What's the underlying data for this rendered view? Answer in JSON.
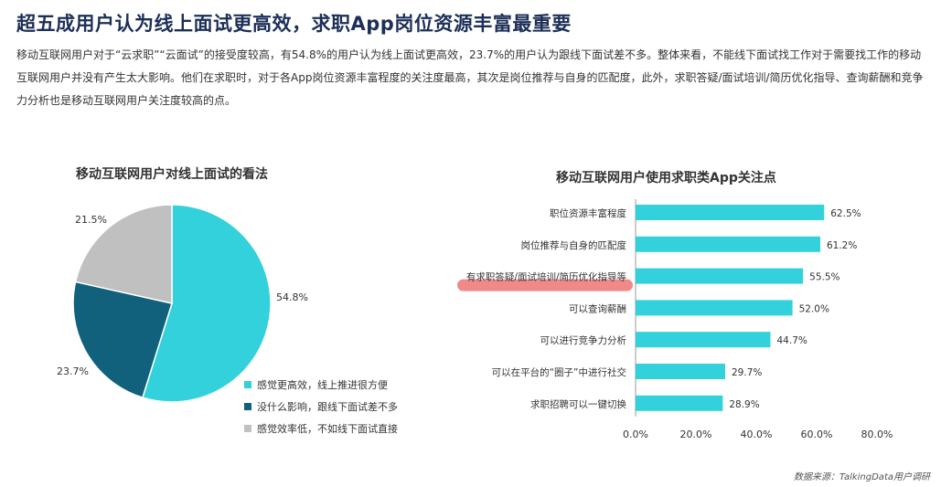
{
  "headline": "超五成用户认为线上面试更高效，求职App岗位资源丰富最重要",
  "summary": "移动互联网用户对于“云求职”“云面试”的接受度较高，有54.8%的用户认为线上面试更高效，23.7%的用户认为跟线下面试差不多。整体来看，不能线下面试找工作对于需要找工作的移动互联网用户并没有产生太大影响。他们在求职时，对于各App岗位资源丰富程度的关注度最高，其次是岗位推荐与自身的匹配度，此外，求职答疑/面试培训/简历优化指导、查询薪酬和竞争力分析也是移动互联网用户关注度较高的点。",
  "source": "数据来源：TalkingData用户调研",
  "colors": {
    "cyan": "#33d1dc",
    "teal": "#11607c",
    "gray": "#c0c0c0",
    "highlight": "#f08a8a",
    "headline": "#1c2f57"
  },
  "chart_data": [
    {
      "type": "pie",
      "title": "移动互联网用户对线上面试的看法",
      "slices": [
        {
          "label": "感觉更高效，线上推进很方便",
          "value": 54.8,
          "value_label": "54.8%",
          "color": "#33d1dc"
        },
        {
          "label": "没什么影响，跟线下面试差不多",
          "value": 23.7,
          "value_label": "23.7%",
          "color": "#11607c"
        },
        {
          "label": "感觉效率低，不如线下面试直接",
          "value": 21.5,
          "value_label": "21.5%",
          "color": "#c0c0c0"
        }
      ],
      "legend_position": "bottom-right"
    },
    {
      "type": "bar",
      "orientation": "horizontal",
      "title": "移动互联网用户使用求职类App关注点",
      "categories": [
        "职位资源丰富程度",
        "岗位推荐与自身的匹配度",
        "有求职答疑/面试培训/简历优化指导等",
        "可以查询薪酬",
        "可以进行竞争力分析",
        "可以在平台的“圈子”中进行社交",
        "求职招聘可以一键切换"
      ],
      "values": [
        62.5,
        61.2,
        55.5,
        52.0,
        44.7,
        29.7,
        28.9
      ],
      "value_labels": [
        "62.5%",
        "61.2%",
        "55.5%",
        "52.0%",
        "44.7%",
        "29.7%",
        "28.9%"
      ],
      "highlighted_category": "有求职答疑/面试培训/简历优化指导等",
      "xlim": [
        0,
        80
      ],
      "ticks": [
        "0.0%",
        "20.0%",
        "40.0%",
        "60.0%",
        "80.0%"
      ],
      "tick_values": [
        0,
        20,
        40,
        60,
        80
      ],
      "color": "#33d1dc",
      "grid": false
    }
  ]
}
